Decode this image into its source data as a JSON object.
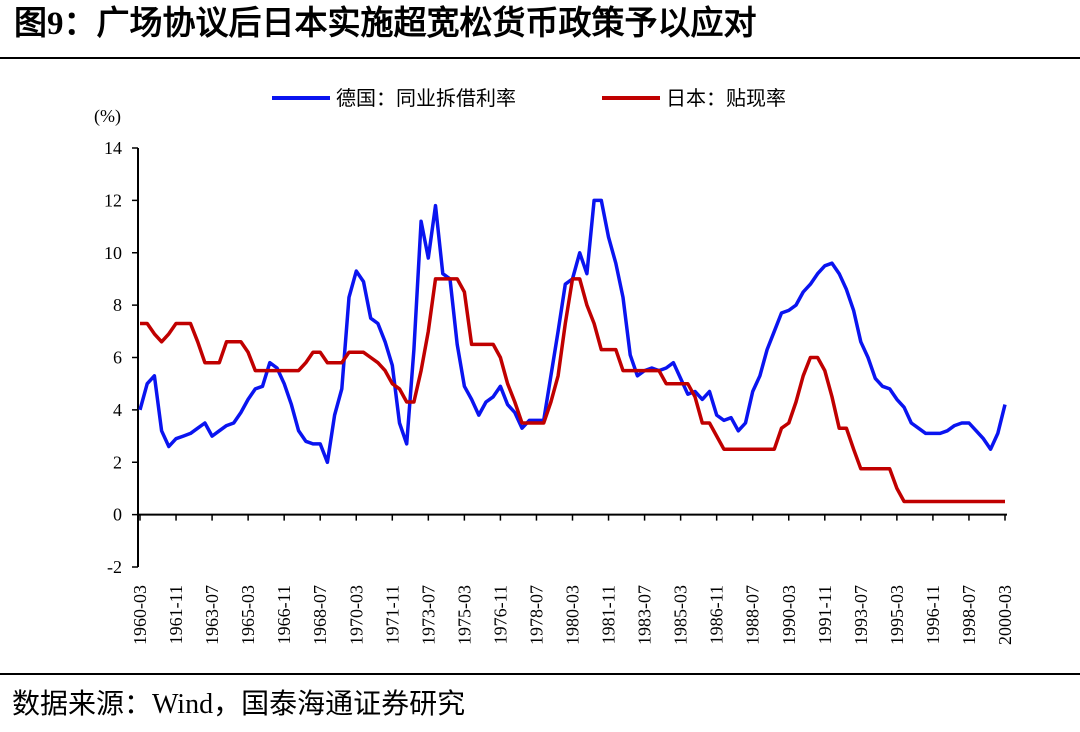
{
  "chart_data": {
    "type": "line",
    "title": "图9：广场协议后日本实施超宽松货币政策予以应对",
    "y_unit": "(%)",
    "source": "数据来源：Wind，国泰海通证券研究",
    "categories": [
      "1960-03",
      null,
      null,
      null,
      null,
      "1961-11",
      null,
      null,
      null,
      null,
      "1963-07",
      null,
      null,
      null,
      null,
      "1965-03",
      null,
      null,
      null,
      null,
      "1966-11",
      null,
      null,
      null,
      null,
      "1968-07",
      null,
      null,
      null,
      null,
      "1970-03",
      null,
      null,
      null,
      null,
      "1971-11",
      null,
      null,
      null,
      null,
      "1973-07",
      null,
      null,
      null,
      null,
      "1975-03",
      null,
      null,
      null,
      null,
      "1976-11",
      null,
      null,
      null,
      null,
      "1978-07",
      null,
      null,
      null,
      null,
      "1980-03",
      null,
      null,
      null,
      null,
      "1981-11",
      null,
      null,
      null,
      null,
      "1983-07",
      null,
      null,
      null,
      null,
      "1985-03",
      null,
      null,
      null,
      null,
      "1986-11",
      null,
      null,
      null,
      null,
      "1988-07",
      null,
      null,
      null,
      null,
      "1990-03",
      null,
      null,
      null,
      null,
      "1991-11",
      null,
      null,
      null,
      null,
      "1993-07",
      null,
      null,
      null,
      null,
      "1995-03",
      null,
      null,
      null,
      null,
      "1996-11",
      null,
      null,
      null,
      null,
      "1998-07",
      null,
      null,
      null,
      null,
      "2000-03"
    ],
    "series": [
      {
        "name": "德国：同业拆借利率",
        "color": "#0a14f0",
        "values": [
          4.0,
          5.0,
          5.3,
          3.2,
          2.6,
          2.9,
          3.0,
          3.1,
          3.3,
          3.5,
          3.0,
          3.2,
          3.4,
          3.5,
          3.9,
          4.4,
          4.8,
          4.9,
          5.8,
          5.6,
          5.0,
          4.2,
          3.2,
          2.8,
          2.7,
          2.7,
          2.0,
          3.8,
          4.8,
          8.3,
          9.3,
          8.9,
          7.5,
          7.3,
          6.6,
          5.7,
          3.5,
          2.7,
          6.3,
          11.2,
          9.8,
          11.8,
          9.2,
          9.0,
          6.5,
          4.9,
          4.4,
          3.8,
          4.3,
          4.5,
          4.9,
          4.2,
          3.9,
          3.3,
          3.6,
          3.6,
          3.6,
          5.3,
          7.0,
          8.8,
          9.0,
          10.0,
          9.2,
          12.0,
          12.0,
          10.6,
          9.6,
          8.3,
          6.1,
          5.3,
          5.5,
          5.6,
          5.5,
          5.6,
          5.8,
          5.2,
          4.6,
          4.7,
          4.4,
          4.7,
          3.8,
          3.6,
          3.7,
          3.2,
          3.5,
          4.7,
          5.3,
          6.3,
          7.0,
          7.7,
          7.8,
          8.0,
          8.5,
          8.8,
          9.2,
          9.5,
          9.6,
          9.2,
          8.6,
          7.8,
          6.6,
          6.0,
          5.2,
          4.9,
          4.8,
          4.4,
          4.1,
          3.5,
          3.3,
          3.1,
          3.1,
          3.1,
          3.2,
          3.4,
          3.5,
          3.5,
          3.2,
          2.9,
          2.5,
          3.1,
          4.2
        ]
      },
      {
        "name": "日本：贴现率",
        "color": "#c00000",
        "values": [
          7.3,
          7.3,
          6.9,
          6.6,
          6.9,
          7.3,
          7.3,
          7.3,
          6.6,
          5.8,
          5.8,
          5.8,
          6.6,
          6.6,
          6.6,
          6.2,
          5.5,
          5.5,
          5.5,
          5.5,
          5.5,
          5.5,
          5.5,
          5.8,
          6.2,
          6.2,
          5.8,
          5.8,
          5.8,
          6.2,
          6.2,
          6.2,
          6.0,
          5.8,
          5.5,
          5.0,
          4.8,
          4.3,
          4.3,
          5.5,
          7.0,
          9.0,
          9.0,
          9.0,
          9.0,
          8.5,
          6.5,
          6.5,
          6.5,
          6.5,
          6.0,
          5.0,
          4.3,
          3.5,
          3.5,
          3.5,
          3.5,
          4.3,
          5.3,
          7.3,
          9.0,
          9.0,
          8.0,
          7.3,
          6.3,
          6.3,
          6.3,
          5.5,
          5.5,
          5.5,
          5.5,
          5.5,
          5.5,
          5.0,
          5.0,
          5.0,
          5.0,
          4.5,
          3.5,
          3.5,
          3.0,
          2.5,
          2.5,
          2.5,
          2.5,
          2.5,
          2.5,
          2.5,
          2.5,
          3.3,
          3.5,
          4.3,
          5.3,
          6.0,
          6.0,
          5.5,
          4.5,
          3.3,
          3.3,
          2.5,
          1.75,
          1.75,
          1.75,
          1.75,
          1.75,
          1.0,
          0.5,
          0.5,
          0.5,
          0.5,
          0.5,
          0.5,
          0.5,
          0.5,
          0.5,
          0.5,
          0.5,
          0.5,
          0.5,
          0.5,
          0.5
        ]
      }
    ],
    "ylim": [
      -2,
      14
    ],
    "yticks": [
      -2,
      0,
      2,
      4,
      6,
      8,
      10,
      12,
      14
    ],
    "legend": "top"
  }
}
